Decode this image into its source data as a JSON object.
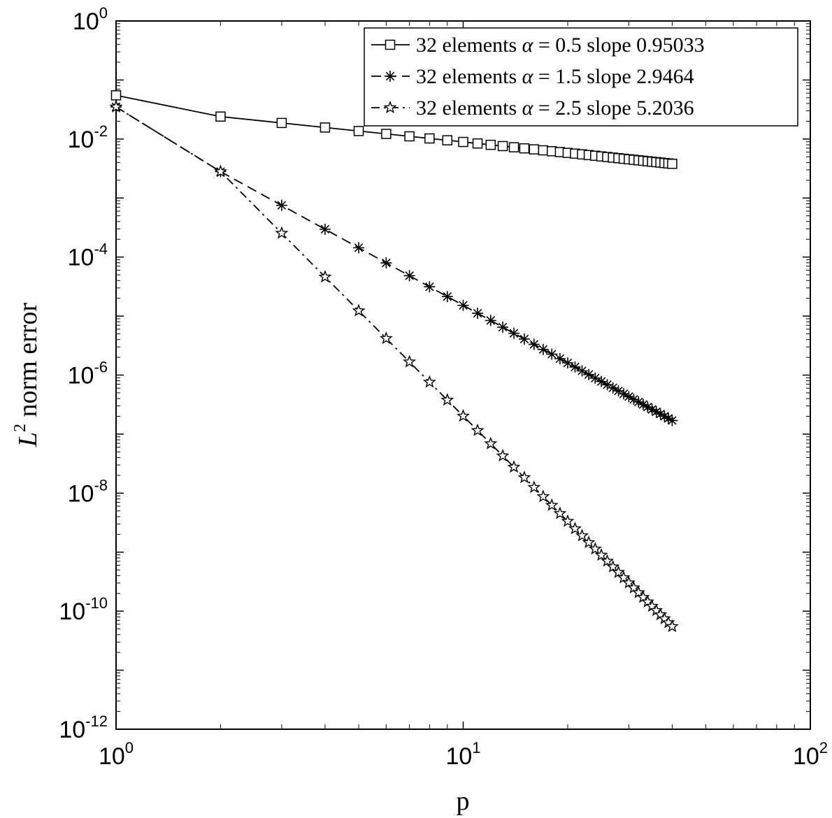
{
  "chart_data": {
    "type": "line",
    "xscale": "log",
    "yscale": "log",
    "xlim": [
      1,
      100
    ],
    "ylim": [
      1e-12,
      1
    ],
    "xlabel": "p",
    "ylabel_text": "norm error",
    "ylabel_math": "L",
    "ylabel_sup": "2",
    "grid": false,
    "legend_position": "top-right",
    "x_ticks": [
      {
        "value": 1,
        "base": "10",
        "exp": "0"
      },
      {
        "value": 10,
        "base": "10",
        "exp": "1"
      },
      {
        "value": 100,
        "base": "10",
        "exp": "2"
      }
    ],
    "y_ticks": [
      {
        "value": 1,
        "base": "10",
        "exp": "0"
      },
      {
        "value": 0.01,
        "base": "10",
        "exp": "-2"
      },
      {
        "value": 0.0001,
        "base": "10",
        "exp": "-4"
      },
      {
        "value": 1e-06,
        "base": "10",
        "exp": "-6"
      },
      {
        "value": 1e-08,
        "base": "10",
        "exp": "-8"
      },
      {
        "value": 1e-10,
        "base": "10",
        "exp": "-10"
      },
      {
        "value": 1e-12,
        "base": "10",
        "exp": "-12"
      }
    ],
    "x_range": [
      1,
      40
    ],
    "series": [
      {
        "name": "32 elements",
        "alpha_symbol": "α",
        "alpha": "0.5",
        "slope": "0.95033",
        "marker": "square",
        "dash": "solid",
        "color": "#000000",
        "y_first": 0.055,
        "y_second": 0.024,
        "y_last": 0.0038
      },
      {
        "name": "32 elements",
        "alpha_symbol": "α",
        "alpha": "1.5",
        "slope": "2.9464",
        "marker": "asterisk",
        "dash": "dashed",
        "color": "#000000",
        "y_first": 0.035,
        "y_second": 0.0028,
        "y_last": 1.7e-07
      },
      {
        "name": "32 elements",
        "alpha_symbol": "α",
        "alpha": "2.5",
        "slope": "5.2036",
        "marker": "star",
        "dash": "dashdot",
        "color": "#000000",
        "y_first": 0.035,
        "y_second": 0.0028,
        "y_last": 5.5e-11
      }
    ]
  }
}
